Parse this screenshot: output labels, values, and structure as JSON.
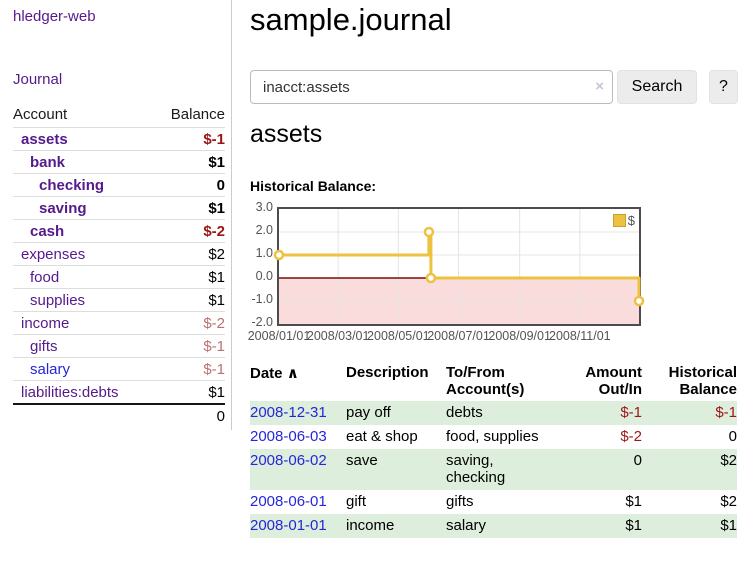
{
  "colors": {
    "purple": "#551A8B",
    "blue": "#2626d8",
    "neg_strong": "#9c1616",
    "neg_soft": "#b87272",
    "gold": "#edc240",
    "negative_fill": "#fbdcdc",
    "zero_line": "#7d0b0b",
    "grid": "#e4e4e4",
    "stripe": "#ddeedd"
  },
  "app": {
    "brand": "hledger-web",
    "nav_journal": "Journal"
  },
  "sidebar": {
    "headers": {
      "account": "Account",
      "balance": "Balance"
    },
    "accounts": [
      {
        "name": "assets",
        "level": 1,
        "bold": true,
        "balance": "$-1",
        "balance_style": "neg-strong",
        "link_style": "visited"
      },
      {
        "name": "bank",
        "level": 2,
        "bold": true,
        "balance": "$1",
        "balance_style": "normal",
        "link_style": "visited"
      },
      {
        "name": "checking",
        "level": 3,
        "bold": true,
        "balance": "0",
        "balance_style": "normal",
        "link_style": "visited"
      },
      {
        "name": "saving",
        "level": 3,
        "bold": true,
        "balance": "$1",
        "balance_style": "normal",
        "link_style": "visited"
      },
      {
        "name": "cash",
        "level": 2,
        "bold": true,
        "balance": "$-2",
        "balance_style": "neg-strong",
        "link_style": "visited"
      },
      {
        "name": "expenses",
        "level": 1,
        "bold": false,
        "balance": "$2",
        "balance_style": "normal",
        "link_style": "visited"
      },
      {
        "name": "food",
        "level": 2,
        "bold": false,
        "balance": "$1",
        "balance_style": "normal",
        "link_style": "visited"
      },
      {
        "name": "supplies",
        "level": 2,
        "bold": false,
        "balance": "$1",
        "balance_style": "normal",
        "link_style": "visited"
      },
      {
        "name": "income",
        "level": 1,
        "bold": false,
        "balance": "$-2",
        "balance_style": "neg-soft",
        "link_style": "visited"
      },
      {
        "name": "gifts",
        "level": 2,
        "bold": false,
        "balance": "$-1",
        "balance_style": "neg-soft",
        "link_style": "visited"
      },
      {
        "name": "salary",
        "level": 2,
        "bold": false,
        "balance": "$-1",
        "balance_style": "neg-soft",
        "link_style": "unvisited"
      },
      {
        "name": "liabilities:debts",
        "level": 1,
        "bold": false,
        "balance": "$1",
        "balance_style": "normal",
        "link_style": "visited"
      }
    ],
    "total": "0"
  },
  "header": {
    "title": "sample.journal"
  },
  "search": {
    "value": "inacct:assets",
    "clear_icon": "×",
    "button_label": "Search",
    "help_label": "?"
  },
  "main": {
    "account_title": "assets",
    "chart_label": "Historical Balance:"
  },
  "chart_data": {
    "type": "line",
    "step": true,
    "title": "Historical Balance:",
    "series": [
      {
        "name": "$",
        "points": [
          [
            "2008-01-01",
            1
          ],
          [
            "2008-06-01",
            2
          ],
          [
            "2008-06-03",
            0
          ],
          [
            "2008-12-31",
            -1
          ]
        ]
      }
    ],
    "x_range": [
      "2008-01-01",
      "2008-12-31"
    ],
    "ylim": [
      -2,
      3
    ],
    "yticks": [
      {
        "v": 3,
        "label": "3.0"
      },
      {
        "v": 2,
        "label": "2.0"
      },
      {
        "v": 1,
        "label": "1.0"
      },
      {
        "v": 0,
        "label": "0.0"
      },
      {
        "v": -1,
        "label": "-1.0"
      },
      {
        "v": -2,
        "label": "-2.0"
      }
    ],
    "xticks": [
      {
        "date": "2008-01-01",
        "label": "2008/01/01"
      },
      {
        "date": "2008-03-01",
        "label": "2008/03/01"
      },
      {
        "date": "2008-05-01",
        "label": "2008/05/01"
      },
      {
        "date": "2008-07-01",
        "label": "2008/07/01"
      },
      {
        "date": "2008-09-01",
        "label": "2008/09/01"
      },
      {
        "date": "2008-11-01",
        "label": "2008/11/01"
      }
    ],
    "legend": {
      "label": "$",
      "position": "top-right"
    },
    "negative_region_highlight": true,
    "grid": true
  },
  "register": {
    "headers": {
      "date": "Date",
      "sort_icon": "∧",
      "description": "Description",
      "accounts": "To/From Account(s)",
      "amount": "Amount Out/In",
      "balance": "Historical Balance"
    },
    "rows": [
      {
        "date": "2008-12-31",
        "description": "pay off",
        "accounts": "debts",
        "amount": "$-1",
        "amount_style": "neg",
        "balance": "$-1",
        "balance_style": "neg"
      },
      {
        "date": "2008-06-03",
        "description": "eat & shop",
        "accounts": "food, supplies",
        "amount": "$-2",
        "amount_style": "neg",
        "balance": "0",
        "balance_style": "normal"
      },
      {
        "date": "2008-06-02",
        "description": "save",
        "accounts": "saving, checking",
        "amount": "0",
        "amount_style": "normal",
        "balance": "$2",
        "balance_style": "normal"
      },
      {
        "date": "2008-06-01",
        "description": "gift",
        "accounts": "gifts",
        "amount": "$1",
        "amount_style": "normal",
        "balance": "$2",
        "balance_style": "normal"
      },
      {
        "date": "2008-01-01",
        "description": "income",
        "accounts": "salary",
        "amount": "$1",
        "amount_style": "normal",
        "balance": "$1",
        "balance_style": "normal"
      }
    ]
  }
}
